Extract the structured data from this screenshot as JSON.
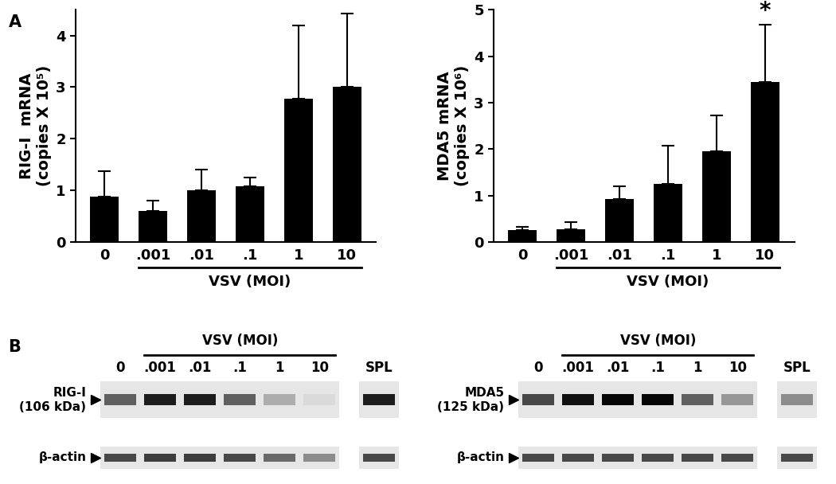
{
  "panel_labels": [
    "A",
    "B"
  ],
  "chart_data": [
    {
      "type": "bar",
      "y_label": "RIG-I  mRNA\n(copies X 10⁵)",
      "categories": [
        "0",
        ".001",
        ".01",
        ".1",
        "1",
        "10"
      ],
      "values": [
        0.88,
        0.6,
        1.0,
        1.08,
        2.77,
        3.0
      ],
      "error": [
        0.5,
        0.2,
        0.4,
        0.17,
        1.43,
        1.42
      ],
      "color": "#000000",
      "ylim": [
        0,
        4.5
      ],
      "yticks": [
        0,
        1,
        2,
        3,
        4
      ],
      "group": {
        "label": "VSV (MOI)",
        "members": [
          ".001",
          ".01",
          ".1",
          "1",
          "10"
        ]
      }
    },
    {
      "type": "bar",
      "y_label": "MDA5 mRNA\n(copies X 10⁶)",
      "categories": [
        "0",
        ".001",
        ".01",
        ".1",
        "1",
        "10"
      ],
      "values": [
        0.25,
        0.28,
        0.92,
        1.25,
        1.95,
        3.45
      ],
      "error": [
        0.08,
        0.15,
        0.28,
        0.83,
        0.78,
        1.23
      ],
      "color": "#000000",
      "ylim": [
        0,
        5
      ],
      "yticks": [
        0,
        1,
        2,
        3,
        4,
        5
      ],
      "group": {
        "label": "VSV (MOI)",
        "members": [
          ".001",
          ".01",
          ".1",
          "1",
          "10"
        ]
      },
      "annotations": [
        {
          "text": "*",
          "category": "10"
        }
      ]
    }
  ],
  "blots": [
    {
      "lanes": [
        "0",
        ".001",
        ".01",
        ".1",
        "1",
        "10",
        "SPL"
      ],
      "separate_lanes": [
        "SPL"
      ],
      "group": {
        "label": "VSV (MOI)",
        "members": [
          ".001",
          ".01",
          ".1",
          "1",
          "10"
        ]
      },
      "rows": [
        {
          "label": "RIG-I\n(106 kDa)",
          "band_intensity": [
            0.6,
            0.9,
            0.9,
            0.6,
            0.25,
            0.05,
            0.9
          ]
        },
        {
          "label": "β-actin",
          "band_intensity": [
            0.7,
            0.75,
            0.75,
            0.7,
            0.55,
            0.4,
            0.7
          ]
        }
      ]
    },
    {
      "lanes": [
        "0",
        ".001",
        ".01",
        ".1",
        "1",
        "10",
        "SPL"
      ],
      "separate_lanes": [
        "SPL"
      ],
      "group": {
        "label": "VSV (MOI)",
        "members": [
          ".001",
          ".01",
          ".1",
          "1",
          "10"
        ]
      },
      "rows": [
        {
          "label": "MDA5\n(125 kDa)",
          "band_intensity": [
            0.7,
            0.95,
            1.0,
            1.0,
            0.6,
            0.35,
            0.4
          ]
        },
        {
          "label": "β-actin",
          "band_intensity": [
            0.7,
            0.7,
            0.7,
            0.7,
            0.7,
            0.7,
            0.7
          ]
        }
      ]
    }
  ]
}
